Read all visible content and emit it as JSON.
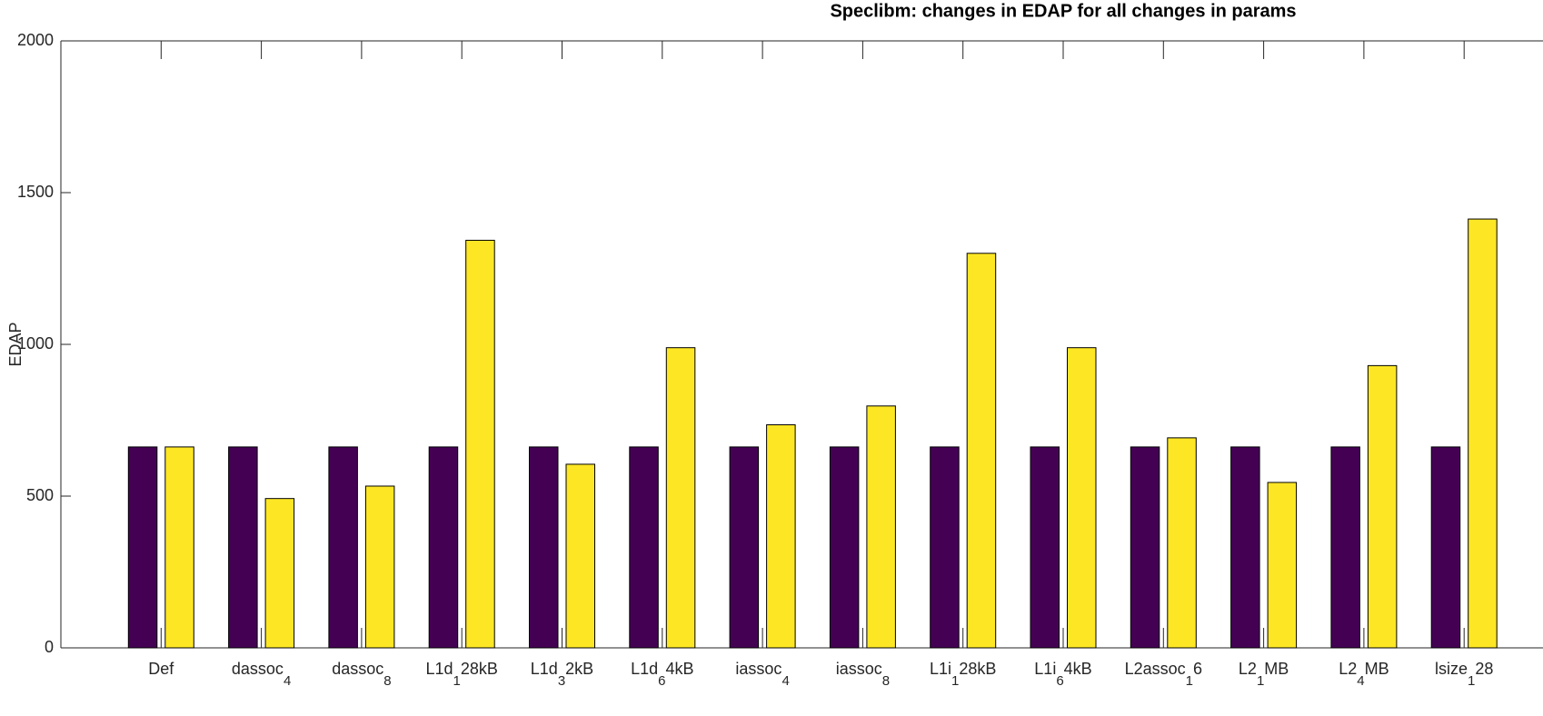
{
  "chart_data": {
    "type": "bar",
    "title": "Speclibm: changes in EDAP for all changes in params",
    "y_label": "EDAP",
    "categories": [
      "Def",
      "dassoc",
      "dassoc",
      "L1d",
      "L1d",
      "L1d",
      "iassoc",
      "iassoc",
      "L1i",
      "L1i",
      "L2assoc",
      "L2",
      "L2",
      "lsize"
    ],
    "category_subscripts": [
      null,
      "4",
      "8",
      "1",
      "3",
      "6",
      "4",
      "8",
      "1",
      "6",
      "1",
      "1",
      "4",
      "1"
    ],
    "category_suffixes": [
      null,
      null,
      null,
      "28kB",
      "2kB",
      "4kB",
      null,
      null,
      "28kB",
      "4kB",
      "6",
      "MB",
      "MB",
      "28"
    ],
    "series": [
      {
        "color": "#440154",
        "values": [
          662,
          662,
          662,
          662,
          662,
          662,
          662,
          662,
          662,
          662,
          662,
          662,
          662,
          662
        ]
      },
      {
        "color": "#fde725",
        "values": [
          662,
          492,
          533,
          1343,
          605,
          989,
          735,
          797,
          1300,
          989,
          692,
          545,
          930,
          1413
        ]
      }
    ],
    "ylim": [
      0,
      2000
    ],
    "yticks": [
      0,
      500,
      1000,
      1500,
      2000
    ],
    "grid": false
  }
}
